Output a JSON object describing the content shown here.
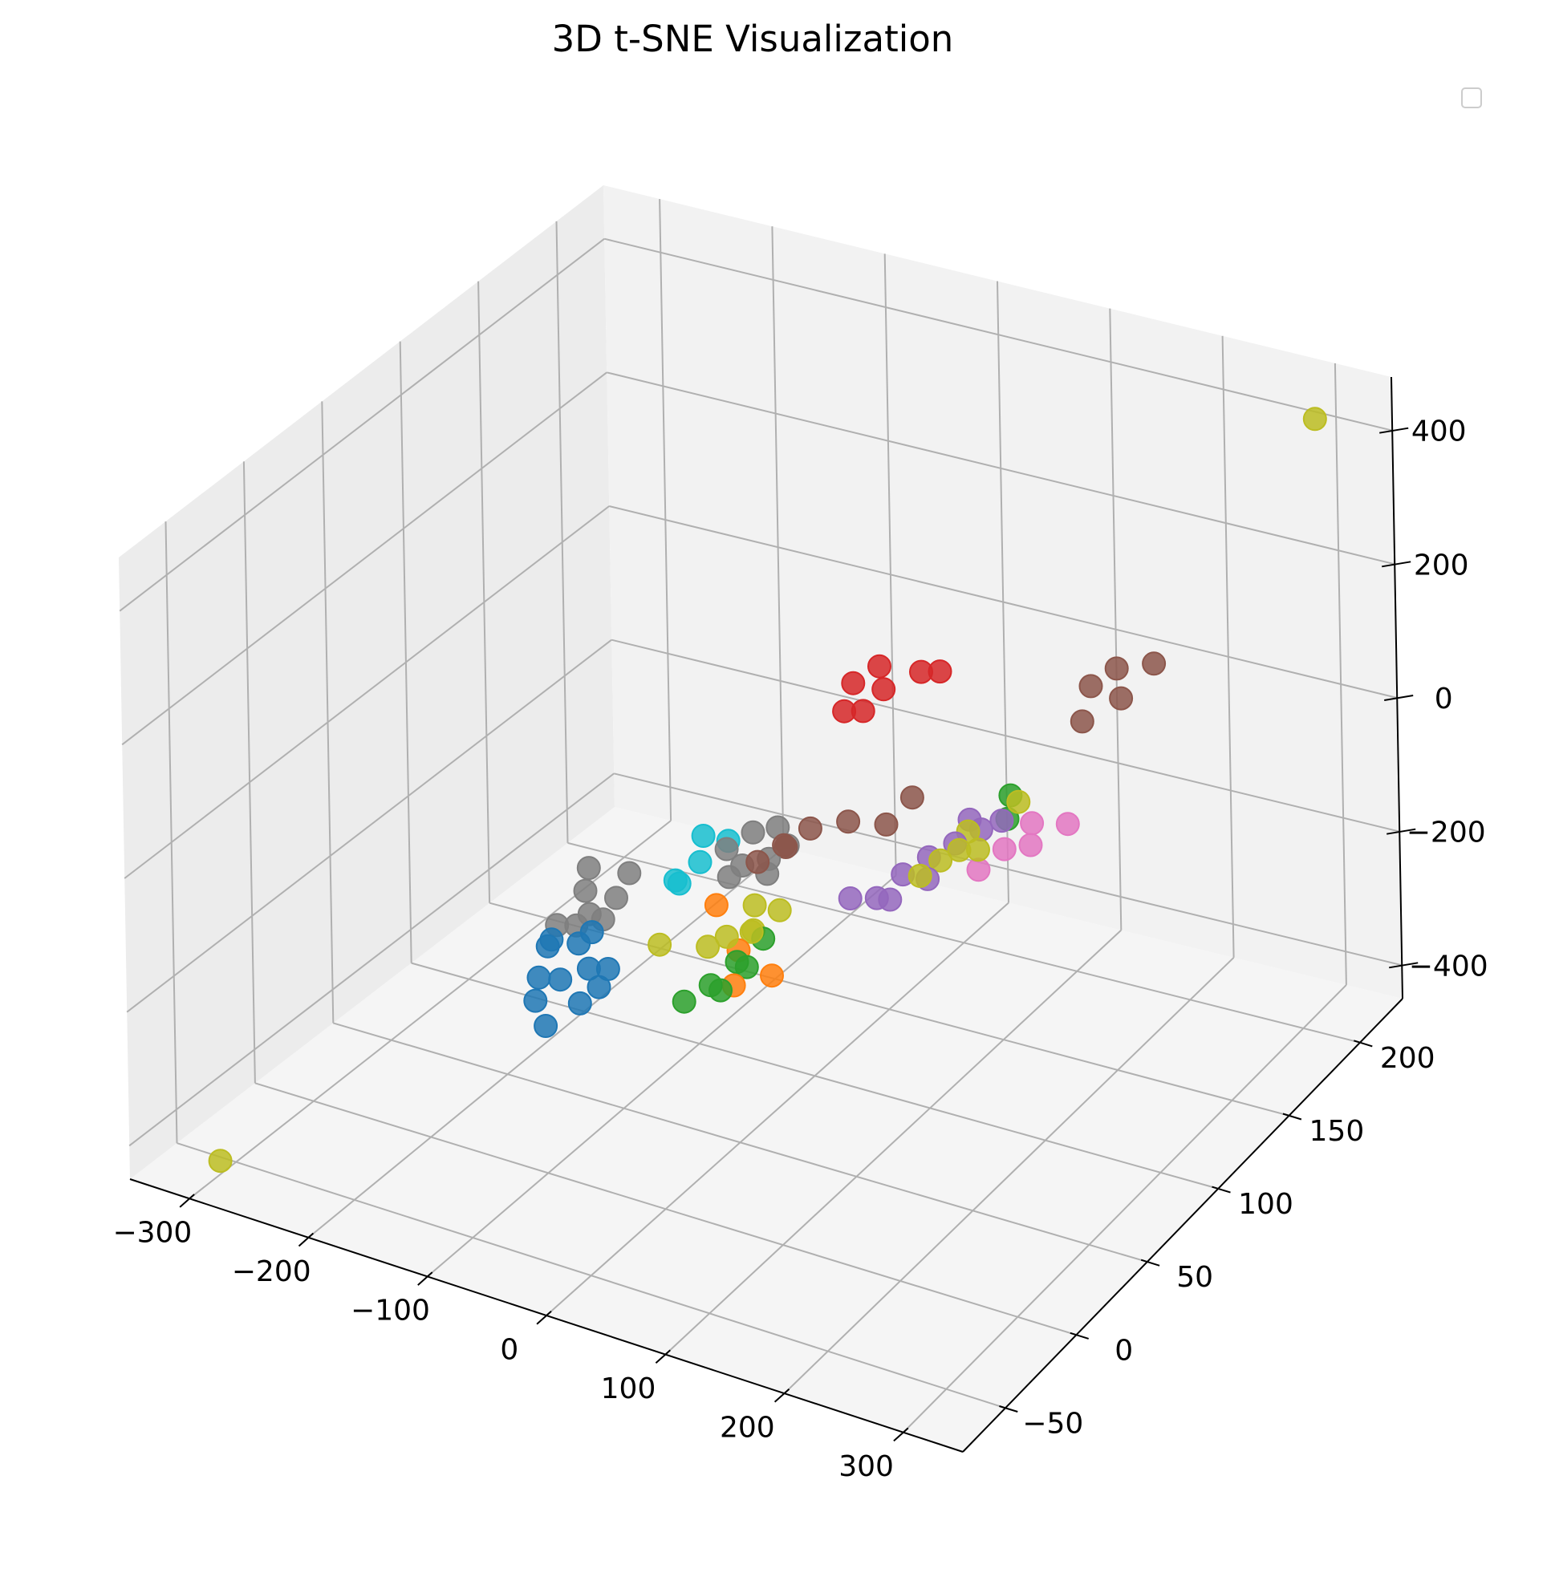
{
  "chart_data": {
    "type": "scatter",
    "title": "3D t-SNE Visualization",
    "projection": "3d",
    "xlim": [
      -350,
      350
    ],
    "ylim": [
      -80,
      230
    ],
    "zlim": [
      -450,
      480
    ],
    "x_ticks": [
      "−300",
      "−200",
      "−100",
      "0",
      "100",
      "200",
      "300"
    ],
    "y_ticks": [
      "−50",
      "0",
      "50",
      "100",
      "150",
      "200"
    ],
    "z_ticks": [
      "−400",
      "−200",
      "0",
      "200",
      "400"
    ],
    "grid": true,
    "legend": "top-right (empty)",
    "series": [
      {
        "color": "#1f77b4",
        "points": [
          [
            -120,
            20,
            -150
          ],
          [
            -110,
            30,
            -170
          ],
          [
            -125,
            15,
            -200
          ],
          [
            -100,
            10,
            -180
          ],
          [
            -95,
            25,
            -190
          ],
          [
            -115,
            5,
            -210
          ],
          [
            -90,
            15,
            -220
          ],
          [
            -105,
            35,
            -160
          ],
          [
            -80,
            20,
            -200
          ],
          [
            -130,
            25,
            -175
          ],
          [
            -100,
            0,
            -230
          ],
          [
            -85,
            30,
            -195
          ]
        ]
      },
      {
        "color": "#ff7f0e",
        "points": [
          [
            -30,
            60,
            -130
          ],
          [
            10,
            40,
            -190
          ],
          [
            30,
            50,
            -185
          ],
          [
            -5,
            55,
            -175
          ]
        ]
      },
      {
        "color": "#2ca02c",
        "points": [
          [
            0,
            50,
            -180
          ],
          [
            -10,
            40,
            -200
          ],
          [
            5,
            35,
            -190
          ],
          [
            15,
            45,
            -170
          ],
          [
            -20,
            30,
            -210
          ],
          [
            10,
            60,
            -160
          ],
          [
            120,
            140,
            -90
          ],
          [
            110,
            150,
            -80
          ]
        ]
      },
      {
        "color": "#d62728",
        "points": [
          [
            -40,
            160,
            0
          ],
          [
            -30,
            170,
            10
          ],
          [
            -20,
            165,
            -10
          ],
          [
            0,
            175,
            5
          ],
          [
            10,
            180,
            0
          ],
          [
            -35,
            150,
            -20
          ],
          [
            -25,
            155,
            -25
          ]
        ]
      },
      {
        "color": "#9467bd",
        "points": [
          [
            80,
            100,
            -110
          ],
          [
            90,
            110,
            -100
          ],
          [
            70,
            90,
            -130
          ],
          [
            100,
            120,
            -95
          ],
          [
            60,
            80,
            -115
          ],
          [
            95,
            105,
            -120
          ],
          [
            75,
            95,
            -140
          ],
          [
            110,
            130,
            -90
          ],
          [
            100,
            130,
            -80
          ],
          [
            115,
            140,
            -95
          ]
        ]
      },
      {
        "color": "#8c564b",
        "points": [
          [
            -10,
            90,
            -90
          ],
          [
            0,
            100,
            -80
          ],
          [
            20,
            110,
            -80
          ],
          [
            -20,
            80,
            -100
          ],
          [
            50,
            130,
            -70
          ],
          [
            -15,
            95,
            -105
          ],
          [
            40,
            120,
            -95
          ],
          [
            130,
            190,
            10
          ],
          [
            140,
            200,
            20
          ],
          [
            160,
            210,
            15
          ],
          [
            150,
            195,
            -10
          ],
          [
            135,
            180,
            -20
          ]
        ]
      },
      {
        "color": "#e377c2",
        "points": [
          [
            130,
            130,
            -110
          ],
          [
            140,
            140,
            -120
          ],
          [
            120,
            120,
            -125
          ],
          [
            135,
            145,
            -100
          ],
          [
            160,
            150,
            -100
          ]
        ]
      },
      {
        "color": "#7f7f7f",
        "points": [
          [
            -130,
            50,
            -140
          ],
          [
            -120,
            45,
            -160
          ],
          [
            -140,
            60,
            -130
          ],
          [
            -110,
            55,
            -150
          ],
          [
            -125,
            40,
            -170
          ],
          [
            -135,
            35,
            -165
          ],
          [
            -115,
            50,
            -175
          ],
          [
            -105,
            60,
            -120
          ],
          [
            -60,
            90,
            -120
          ],
          [
            -50,
            100,
            -110
          ],
          [
            -40,
            85,
            -125
          ],
          [
            -30,
            95,
            -130
          ],
          [
            -20,
            100,
            -115
          ],
          [
            -45,
            80,
            -135
          ],
          [
            -35,
            105,
            -105
          ],
          [
            -25,
            90,
            -140
          ]
        ]
      },
      {
        "color": "#bcbd22",
        "points": [
          [
            -300,
            -60,
            -430
          ],
          [
            320,
            200,
            470
          ],
          [
            -60,
            45,
            -175
          ],
          [
            -10,
            70,
            -140
          ],
          [
            0,
            60,
            -155
          ],
          [
            -15,
            55,
            -160
          ],
          [
            5,
            75,
            -150
          ],
          [
            -25,
            50,
            -170
          ],
          [
            -5,
            65,
            -165
          ],
          [
            100,
            110,
            -100
          ],
          [
            110,
            115,
            -90
          ],
          [
            120,
            120,
            -95
          ],
          [
            95,
            100,
            -105
          ],
          [
            130,
            140,
            -60
          ],
          [
            105,
            125,
            -85
          ]
        ]
      },
      {
        "color": "#17becf",
        "points": [
          [
            -80,
            90,
            -110
          ],
          [
            -70,
            80,
            -125
          ],
          [
            -75,
            70,
            -140
          ],
          [
            -65,
            95,
            -120
          ],
          [
            -85,
            75,
            -150
          ]
        ]
      }
    ]
  }
}
